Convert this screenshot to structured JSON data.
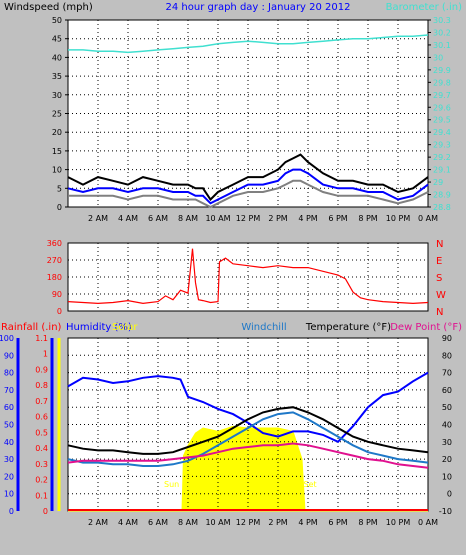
{
  "header": {
    "left_title": "Windspeed (mph)",
    "center_title": "24 hour graph day : January 20 2012",
    "right_title": "Barometer (.in)"
  },
  "colors": {
    "background": "#c0c0c0",
    "plot_bg": "#ffffff",
    "windspeed": "#000000",
    "wind_avg": "#0000ff",
    "wind_gust": "#808080",
    "barometer": "#40e0d0",
    "direction": "#ff0000",
    "rainfall": "#ff0000",
    "humidity": "#0000ff",
    "solar": "#ffff00",
    "windchill": "#1e78c8",
    "temperature": "#000000",
    "dewpoint": "#e0108f"
  },
  "time_axis_labels": [
    "2 AM",
    "4 AM",
    "6 AM",
    "8 AM",
    "10 AM",
    "12 PM",
    "2 PM",
    "4 PM",
    "6 PM",
    "8 PM",
    "10 PM",
    "0 AM"
  ],
  "chart_data": [
    {
      "type": "line",
      "title": "24 hour graph day : January 20 2012",
      "xlabel": "",
      "ylabel": "Windspeed (mph)",
      "y2label": "Barometer (.in)",
      "ylim": [
        0,
        50
      ],
      "y2lim": [
        28.8,
        30.3
      ],
      "x_hours": [
        0,
        24
      ],
      "yticks": [
        0,
        5,
        10,
        15,
        20,
        25,
        30,
        35,
        40,
        45,
        50
      ],
      "y2ticks": [
        "28.8",
        "28.9",
        "29",
        "29.1",
        "29.2",
        "29.3",
        "29.4",
        "29.5",
        "29.6",
        "29.7",
        "29.8",
        "29.9",
        "30",
        "30.1",
        "30.2",
        "30.3"
      ],
      "grid": true,
      "series": [
        {
          "name": "Windspeed (mph)",
          "axis": "left",
          "x": [
            0,
            1,
            2,
            3,
            4,
            5,
            6,
            7,
            8,
            8.5,
            9,
            9.5,
            10,
            11,
            12,
            13,
            14,
            14.5,
            15,
            15.5,
            16,
            17,
            18,
            19,
            20,
            21,
            22,
            23,
            24
          ],
          "y": [
            8,
            6,
            8,
            7,
            6,
            8,
            7,
            6,
            6,
            5,
            5,
            2,
            4,
            6,
            8,
            8,
            10,
            12,
            13,
            14,
            12,
            9,
            7,
            7,
            6,
            6,
            4,
            5,
            8
          ]
        },
        {
          "name": "",
          "axis": "left",
          "x": [
            0,
            1,
            2,
            3,
            4,
            5,
            6,
            7,
            8,
            8.5,
            9,
            9.5,
            10,
            11,
            12,
            13,
            14,
            14.5,
            15,
            15.5,
            16,
            17,
            18,
            19,
            20,
            21,
            22,
            23,
            24
          ],
          "y": [
            5,
            4,
            5,
            5,
            4,
            5,
            5,
            4,
            4,
            3,
            3,
            1,
            2,
            4,
            6,
            6,
            7,
            9,
            10,
            10,
            9,
            6,
            5,
            5,
            4,
            4,
            2,
            3,
            6
          ]
        },
        {
          "name": "",
          "axis": "left",
          "x": [
            0,
            1,
            2,
            3,
            4,
            5,
            6,
            7,
            8,
            8.5,
            9,
            9.5,
            10,
            11,
            12,
            13,
            14,
            14.5,
            15,
            15.5,
            16,
            17,
            18,
            19,
            20,
            21,
            22,
            23,
            24
          ],
          "y": [
            3,
            3,
            3,
            3,
            2,
            3,
            3,
            2,
            2,
            2,
            1,
            0,
            1,
            3,
            4,
            4,
            5,
            6,
            7,
            7,
            6,
            4,
            3,
            3,
            3,
            2,
            1,
            2,
            4
          ]
        },
        {
          "name": "Barometer (.in)",
          "axis": "right",
          "x": [
            0,
            1,
            2,
            3,
            4,
            5,
            6,
            7,
            8,
            9,
            10,
            11,
            12,
            13,
            14,
            15,
            16,
            17,
            18,
            19,
            20,
            21,
            22,
            23,
            24
          ],
          "y": [
            30.06,
            30.06,
            30.05,
            30.05,
            30.04,
            30.05,
            30.06,
            30.07,
            30.08,
            30.09,
            30.11,
            30.12,
            30.13,
            30.12,
            30.11,
            30.11,
            30.12,
            30.13,
            30.14,
            30.15,
            30.15,
            30.16,
            30.17,
            30.17,
            30.18
          ]
        }
      ]
    },
    {
      "type": "scatter",
      "title": "",
      "xlabel": "",
      "ylabel": "",
      "ylim": [
        0,
        360
      ],
      "x_hours": [
        0,
        24
      ],
      "yticks": [
        0,
        90,
        180,
        270,
        360
      ],
      "y2ticks": [
        "N",
        "E",
        "S",
        "W",
        "N"
      ],
      "grid": true,
      "series": [
        {
          "name": "",
          "x": [
            0,
            1,
            2,
            3,
            4,
            5,
            6,
            6.5,
            7,
            7.5,
            8,
            8.3,
            8.5,
            8.7,
            9,
            9.5,
            10,
            10.1,
            10.5,
            11,
            12,
            13,
            14,
            15,
            16,
            17,
            18,
            18.5,
            19,
            19.5,
            20,
            21,
            22,
            23,
            24
          ],
          "y": [
            50,
            45,
            40,
            45,
            55,
            40,
            50,
            80,
            60,
            110,
            95,
            330,
            150,
            60,
            55,
            45,
            50,
            260,
            280,
            250,
            240,
            230,
            240,
            230,
            230,
            210,
            190,
            170,
            100,
            70,
            60,
            50,
            45,
            40,
            45
          ]
        }
      ]
    },
    {
      "type": "line",
      "title": "",
      "xlabel": "",
      "ylabel": "Temperature (°F)",
      "left_label_1": "Rainfall (.in)",
      "left_label_2": "Humidity (%)",
      "left_label_3": "Solar",
      "center_label": "Windchill",
      "right_label_1": "Temperature (°F)",
      "right_label_2": "Dew Point (°F)",
      "annotation_sunrise": "Sun Rise",
      "annotation_sunset": "Set",
      "rain_lim": [
        0,
        1.1
      ],
      "rain_ticks": [
        "0",
        "0.1",
        "0.2",
        "0.3",
        "0.4",
        "0.5",
        "0.6",
        "0.7",
        "0.8",
        "0.9",
        "1",
        "1.1"
      ],
      "humidity_lim": [
        0,
        100
      ],
      "humidity_ticks": [
        0,
        10,
        20,
        30,
        40,
        50,
        60,
        70,
        80,
        90,
        100
      ],
      "temp_lim": [
        -10,
        90
      ],
      "temp_ticks": [
        -10,
        0,
        10,
        20,
        30,
        40,
        50,
        60,
        70,
        80,
        90
      ],
      "x_hours": [
        0,
        24
      ],
      "grid": true,
      "series": [
        {
          "name": "Humidity (%)",
          "axis": "humidity",
          "x": [
            0,
            1,
            2,
            3,
            4,
            5,
            6,
            7,
            7.5,
            8,
            9,
            10,
            11,
            12,
            13,
            14,
            15,
            16,
            17,
            18,
            19,
            20,
            21,
            22,
            23,
            24
          ],
          "y": [
            72,
            77,
            76,
            74,
            75,
            77,
            78,
            77,
            76,
            66,
            63,
            59,
            56,
            51,
            45,
            43,
            46,
            46,
            44,
            40,
            49,
            60,
            67,
            69,
            75,
            80
          ]
        },
        {
          "name": "Temperature (°F)",
          "axis": "temp",
          "x": [
            0,
            1,
            2,
            3,
            4,
            5,
            6,
            7,
            8,
            9,
            10,
            11,
            12,
            13,
            14,
            15,
            16,
            17,
            18,
            19,
            20,
            21,
            22,
            23,
            24
          ],
          "y": [
            28,
            26,
            25,
            25,
            24,
            23,
            23,
            24,
            27,
            30,
            33,
            38,
            43,
            47,
            49,
            50,
            47,
            43,
            38,
            33,
            30,
            28,
            26,
            25,
            24
          ]
        },
        {
          "name": "Windchill",
          "axis": "temp",
          "x": [
            0,
            1,
            2,
            3,
            4,
            5,
            6,
            7,
            8,
            9,
            10,
            11,
            12,
            13,
            14,
            15,
            16,
            17,
            18,
            19,
            20,
            21,
            22,
            23,
            24
          ],
          "y": [
            20,
            18,
            18,
            17,
            17,
            16,
            16,
            17,
            19,
            23,
            28,
            33,
            38,
            43,
            46,
            47,
            43,
            38,
            33,
            28,
            24,
            22,
            20,
            19,
            18
          ]
        },
        {
          "name": "Dew Point (°F)",
          "axis": "temp",
          "x": [
            0,
            1,
            2,
            3,
            4,
            5,
            6,
            7,
            8,
            9,
            10,
            11,
            12,
            13,
            14,
            15,
            16,
            17,
            18,
            19,
            20,
            21,
            22,
            23,
            24
          ],
          "y": [
            18,
            19,
            19,
            19,
            19,
            19,
            19,
            20,
            21,
            22,
            24,
            26,
            27,
            28,
            28,
            29,
            28,
            26,
            24,
            22,
            20,
            19,
            17,
            16,
            15
          ]
        },
        {
          "name": "Solar",
          "axis": "humidity",
          "x": [
            0,
            7.6,
            7.7,
            8,
            8.5,
            9,
            10,
            11,
            12,
            13,
            14,
            15,
            15.6,
            15.8,
            24
          ],
          "y": [
            0,
            0,
            32,
            38,
            45,
            48,
            46,
            49,
            48,
            48,
            48,
            46,
            30,
            0,
            0
          ]
        }
      ]
    }
  ]
}
